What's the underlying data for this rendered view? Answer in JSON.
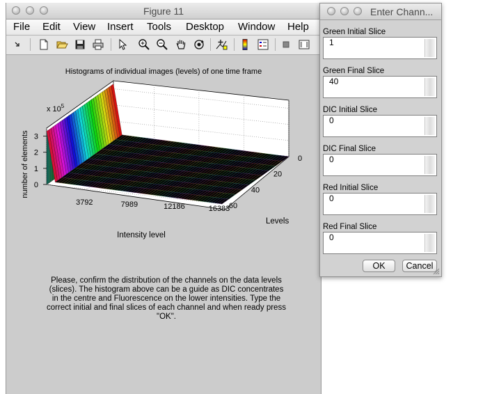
{
  "figure": {
    "title": "Figure 11",
    "menus": [
      "File",
      "Edit",
      "View",
      "Insert",
      "Tools",
      "Desktop",
      "Window",
      "Help"
    ],
    "toolbar_icons": [
      "dock-arrow-icon",
      "new-figure-icon",
      "open-file-icon",
      "save-icon",
      "print-icon",
      "pointer-icon",
      "zoom-in-icon",
      "zoom-out-icon",
      "pan-hand-icon",
      "rotate-3d-icon",
      "data-cursor-icon",
      "colorbar-icon",
      "legend-icon",
      "hide-plot-tools-icon",
      "show-plot-tools-icon"
    ],
    "confirm_text": "Please, confirm the distribution of the channels on the data levels (slices). The histogram above can be a guide as DIC concentrates in the centre and Fluorescence on the lower intensities. Type the correct initial and final slices of each channel and when ready press \"OK\"."
  },
  "chart_data": {
    "type": "surface",
    "title": "Histograms of individual images (levels) of one time frame",
    "xlabel": "Intensity level",
    "ylabel": "Levels",
    "zlabel": "number of elements",
    "z_exponent_label": "x 10",
    "z_exponent": "5",
    "x_ticks": [
      "3792",
      "7989",
      "12186",
      "16383"
    ],
    "y_ticks": [
      "0",
      "20",
      "40",
      "60"
    ],
    "z_ticks": [
      "0",
      "1",
      "2",
      "3"
    ],
    "xlim": [
      0,
      16383
    ],
    "ylim": [
      0,
      60
    ],
    "zlim": [
      0,
      3.5
    ],
    "grid": true,
    "series": [
      {
        "x": 0,
        "levels": [
          0,
          60
        ],
        "z": 3.3
      },
      {
        "x": 800,
        "levels": [
          0,
          60
        ],
        "z": 0.2
      },
      {
        "x": 16383,
        "levels": [
          0,
          60
        ],
        "z": 0.0
      }
    ]
  },
  "dialog": {
    "title": "Enter Chann...",
    "fields": [
      {
        "label": "Green Initial Slice",
        "value": "1"
      },
      {
        "label": "Green Final Slice",
        "value": "40"
      },
      {
        "label": "DIC Initial Slice",
        "value": "0"
      },
      {
        "label": "DIC  Final Slice",
        "value": "0"
      },
      {
        "label": "Red Initial Slice",
        "value": "0"
      },
      {
        "label": "Red Final Slice",
        "value": "0"
      }
    ],
    "ok_label": "OK",
    "cancel_label": "Cancel"
  }
}
